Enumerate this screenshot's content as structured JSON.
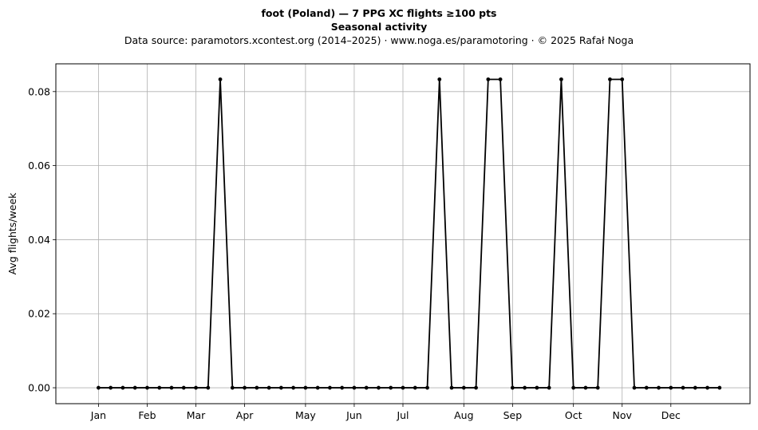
{
  "header": {
    "title": "foot (Poland)  —  7 PPG XC flights ≥100 pts",
    "subtitle": "Seasonal activity",
    "source": "Data source: paramotors.xcontest.org (2014–2025)  ·  www.noga.es/paramotoring  ·  © 2025 Rafał Noga"
  },
  "chart_data": {
    "type": "line",
    "title": "foot (Poland)  —  7 PPG XC flights ≥100 pts",
    "subtitle": "Seasonal activity",
    "xlabel": "",
    "ylabel": "Avg flights/week",
    "x_unit": "week of year",
    "xlim": [
      -2.5,
      54.5
    ],
    "ylim": [
      -0.0043,
      0.0875
    ],
    "yticks": [
      0.0,
      0.02,
      0.04,
      0.06,
      0.08
    ],
    "ytick_labels": [
      "0.00",
      "0.02",
      "0.04",
      "0.06",
      "0.08"
    ],
    "xticks": [
      1,
      5,
      9,
      13,
      18,
      22,
      26,
      31,
      35,
      40,
      44,
      48
    ],
    "xtick_labels": [
      "Jan",
      "Feb",
      "Mar",
      "Apr",
      "May",
      "Jun",
      "Jul",
      "Aug",
      "Sep",
      "Oct",
      "Nov",
      "Dec"
    ],
    "grid": true,
    "color": "#000000",
    "series": [
      {
        "x": [
          1,
          2,
          3,
          4,
          5,
          6,
          7,
          8,
          9,
          10,
          11,
          12,
          13,
          14,
          15,
          16,
          17,
          18,
          19,
          20,
          21,
          22,
          23,
          24,
          25,
          26,
          27,
          28,
          29,
          30,
          31,
          32,
          33,
          34,
          35,
          36,
          37,
          38,
          39,
          40,
          41,
          42,
          43,
          44,
          45,
          46,
          47,
          48,
          49,
          50,
          51,
          52
        ],
        "values": [
          0,
          0,
          0,
          0,
          0,
          0,
          0,
          0,
          0,
          0,
          0.0833,
          0,
          0,
          0,
          0,
          0,
          0,
          0,
          0,
          0,
          0,
          0,
          0,
          0,
          0,
          0,
          0,
          0,
          0.0833,
          0,
          0,
          0,
          0.0833,
          0.0833,
          0,
          0,
          0,
          0,
          0.0833,
          0,
          0,
          0,
          0.0833,
          0.0833,
          0,
          0,
          0,
          0,
          0,
          0,
          0,
          0
        ]
      }
    ]
  }
}
